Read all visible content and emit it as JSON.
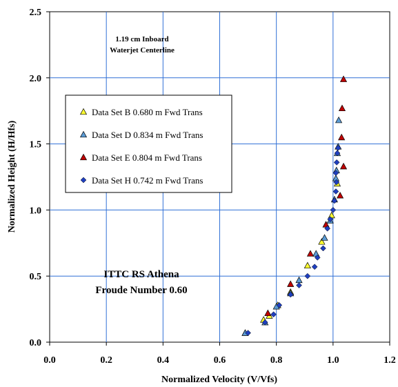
{
  "chart_data": {
    "type": "scatter",
    "xlabel": "Normalized Velocity (V/Vfs)",
    "ylabel": "Normalized Height (H/Hfs)",
    "xlim": [
      0.0,
      1.2
    ],
    "ylim": [
      0.0,
      2.5
    ],
    "xticks": [
      0.0,
      0.2,
      0.4,
      0.6,
      0.8,
      1.0,
      1.2
    ],
    "yticks": [
      0.0,
      0.5,
      1.0,
      1.5,
      2.0,
      2.5
    ],
    "xtick_labels": [
      "0.0",
      "0.2",
      "0.4",
      "0.6",
      "0.8",
      "1.0",
      "1.2"
    ],
    "ytick_labels": [
      "0.0",
      "0.5",
      "1.0",
      "1.5",
      "2.0",
      "2.5"
    ],
    "grid": true,
    "legend_position": "left-middle",
    "annotations": [
      {
        "lines": [
          "1.19 cm Inboard",
          "Waterjet Centerline"
        ],
        "position": "top-left"
      },
      {
        "lines": [
          "ITTC RS Athena",
          "Froude Number 0.60"
        ],
        "position": "lower-left"
      }
    ],
    "series": [
      {
        "name": "Data Set B 0.680 m Fwd Trans",
        "marker": "triangle",
        "color": "#FFFF33",
        "points": [
          [
            0.69,
            0.07
          ],
          [
            0.755,
            0.17
          ],
          [
            0.775,
            0.2
          ],
          [
            0.805,
            0.28
          ],
          [
            0.85,
            0.38
          ],
          [
            0.91,
            0.58
          ],
          [
            0.96,
            0.76
          ],
          [
            0.995,
            0.96
          ],
          [
            1.015,
            1.2
          ]
        ]
      },
      {
        "name": "Data Set D 0.834 m Fwd Trans",
        "marker": "triangle",
        "color": "#5B9BD5",
        "points": [
          [
            0.69,
            0.07
          ],
          [
            0.76,
            0.15
          ],
          [
            0.8,
            0.27
          ],
          [
            0.85,
            0.37
          ],
          [
            0.88,
            0.47
          ],
          [
            0.94,
            0.67
          ],
          [
            0.97,
            0.79
          ],
          [
            0.99,
            0.92
          ],
          [
            1.005,
            1.08
          ],
          [
            1.01,
            1.24
          ],
          [
            1.012,
            1.3
          ],
          [
            1.015,
            1.43
          ],
          [
            1.018,
            1.48
          ],
          [
            1.02,
            1.68
          ]
        ]
      },
      {
        "name": "Data Set E 0.804 m Fwd Trans",
        "marker": "triangle",
        "color": "#C00000",
        "points": [
          [
            0.77,
            0.22
          ],
          [
            0.85,
            0.44
          ],
          [
            0.92,
            0.67
          ],
          [
            0.975,
            0.89
          ],
          [
            1.025,
            1.11
          ],
          [
            1.037,
            1.33
          ],
          [
            1.03,
            1.55
          ],
          [
            1.032,
            1.77
          ],
          [
            1.037,
            1.99
          ]
        ]
      },
      {
        "name": "Data Set H 0.742 m Fwd Trans",
        "marker": "diamond",
        "color": "#1F3FBF",
        "points": [
          [
            0.7,
            0.07
          ],
          [
            0.76,
            0.15
          ],
          [
            0.79,
            0.21
          ],
          [
            0.81,
            0.28
          ],
          [
            0.85,
            0.36
          ],
          [
            0.88,
            0.43
          ],
          [
            0.91,
            0.5
          ],
          [
            0.935,
            0.57
          ],
          [
            0.945,
            0.64
          ],
          [
            0.965,
            0.71
          ],
          [
            0.98,
            0.86
          ],
          [
            0.99,
            0.93
          ],
          [
            1.0,
            1.0
          ],
          [
            1.005,
            1.07
          ],
          [
            1.01,
            1.14
          ],
          [
            1.012,
            1.21
          ],
          [
            1.01,
            1.28
          ],
          [
            1.013,
            1.36
          ],
          [
            1.015,
            1.43
          ],
          [
            1.018,
            1.47
          ]
        ]
      }
    ]
  }
}
